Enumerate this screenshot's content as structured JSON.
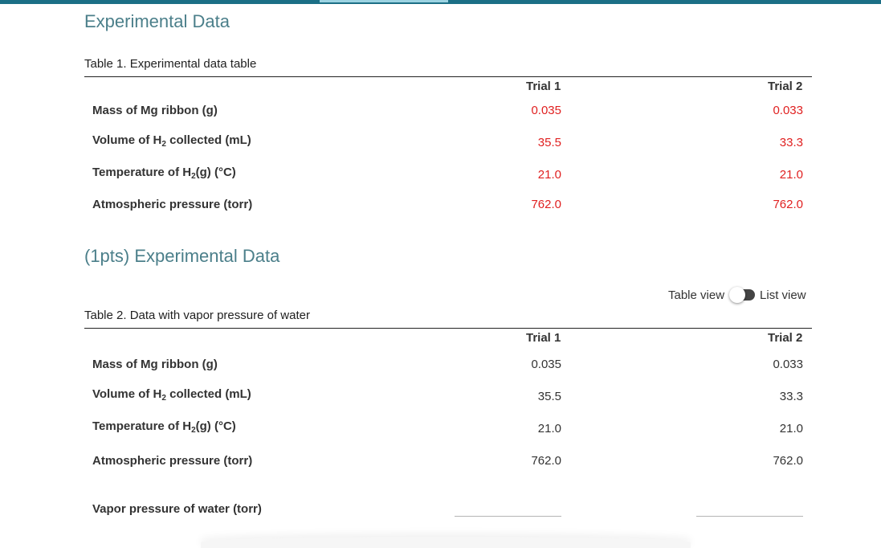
{
  "section1": {
    "title": "Experimental Data",
    "caption": "Table 1. Experimental data table",
    "headers": [
      "Trial 1",
      "Trial 2"
    ],
    "rows": [
      {
        "label": "Mass of Mg ribbon (g)",
        "trial1": "0.035",
        "trial2": "0.033"
      },
      {
        "label_pre": "Volume of H",
        "label_sub": "2",
        "label_post": " collected (mL)",
        "trial1": "35.5",
        "trial2": "33.3"
      },
      {
        "label_pre": "Temperature of H",
        "label_sub": "2",
        "label_post": "(g) (°C)",
        "trial1": "21.0",
        "trial2": "21.0"
      },
      {
        "label": "Atmospheric pressure (torr)",
        "trial1": "762.0",
        "trial2": "762.0"
      }
    ],
    "value_color": "#e02020"
  },
  "section2": {
    "title": "(1pts) Experimental Data",
    "toggle": {
      "left_label": "Table view",
      "right_label": "List view"
    },
    "caption": "Table 2. Data with vapor pressure of water",
    "headers": [
      "Trial 1",
      "Trial 2"
    ],
    "rows": [
      {
        "label": "Mass of Mg ribbon (g)",
        "trial1": "0.035",
        "trial2": "0.033"
      },
      {
        "label_pre": "Volume of H",
        "label_sub": "2",
        "label_post": " collected (mL)",
        "trial1": "35.5",
        "trial2": "33.3"
      },
      {
        "label_pre": "Temperature of H",
        "label_sub": "2",
        "label_post": "(g) (°C)",
        "trial1": "21.0",
        "trial2": "21.0"
      },
      {
        "label": "Atmospheric pressure (torr)",
        "trial1": "762.0",
        "trial2": "762.0"
      },
      {
        "label": "Vapor pressure of water (torr)",
        "trial1": "",
        "trial2": ""
      }
    ]
  },
  "colors": {
    "accent": "#1c6f86",
    "title": "#4b7f8a"
  }
}
